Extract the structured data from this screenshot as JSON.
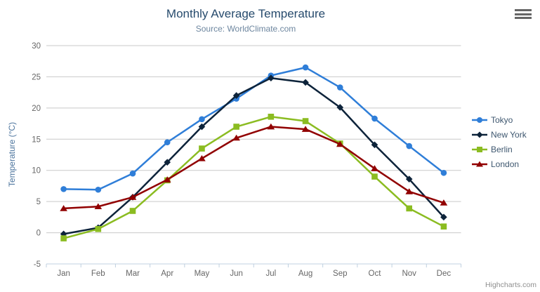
{
  "header": {
    "title": "Monthly Average Temperature",
    "subtitle": "Source: WorldClimate.com"
  },
  "y_axis": {
    "title": "Temperature (°C)"
  },
  "credits": {
    "label": "Highcharts.com"
  },
  "palette": {
    "grid": "#c9c9c9",
    "axis_line": "#c0d0e0",
    "axis_label": "#666666",
    "title": "#274b6d",
    "subtitle": "#6d869f",
    "y_axis_title": "#4d759e",
    "legend_text": "#3e576f",
    "credits_text": "#8f8f8f",
    "menu_icon": "#666666"
  },
  "chart_data": {
    "type": "line",
    "title": "Monthly Average Temperature",
    "subtitle": "Source: WorldClimate.com",
    "xlabel": "",
    "ylabel": "Temperature (°C)",
    "categories": [
      "Jan",
      "Feb",
      "Mar",
      "Apr",
      "May",
      "Jun",
      "Jul",
      "Aug",
      "Sep",
      "Oct",
      "Nov",
      "Dec"
    ],
    "ylim": [
      -5,
      30
    ],
    "y_ticks": [
      -5,
      0,
      5,
      10,
      15,
      20,
      25,
      30
    ],
    "grid": true,
    "legend_position": "right",
    "series": [
      {
        "name": "Tokyo",
        "color": "#2f7ed8",
        "marker": "circle",
        "values": [
          7.0,
          6.9,
          9.5,
          14.5,
          18.2,
          21.5,
          25.2,
          26.5,
          23.3,
          18.3,
          13.9,
          9.6
        ]
      },
      {
        "name": "New York",
        "color": "#0d233a",
        "marker": "diamond",
        "values": [
          -0.2,
          0.8,
          5.7,
          11.3,
          17.0,
          22.0,
          24.8,
          24.1,
          20.1,
          14.1,
          8.6,
          2.5
        ]
      },
      {
        "name": "Berlin",
        "color": "#8bbc21",
        "marker": "square",
        "values": [
          -0.9,
          0.6,
          3.5,
          8.4,
          13.5,
          17.0,
          18.6,
          17.9,
          14.3,
          9.0,
          3.9,
          1.0
        ]
      },
      {
        "name": "London",
        "color": "#910000",
        "marker": "triangle",
        "values": [
          3.9,
          4.2,
          5.7,
          8.5,
          11.9,
          15.2,
          17.0,
          16.6,
          14.2,
          10.3,
          6.6,
          4.8
        ]
      }
    ]
  }
}
